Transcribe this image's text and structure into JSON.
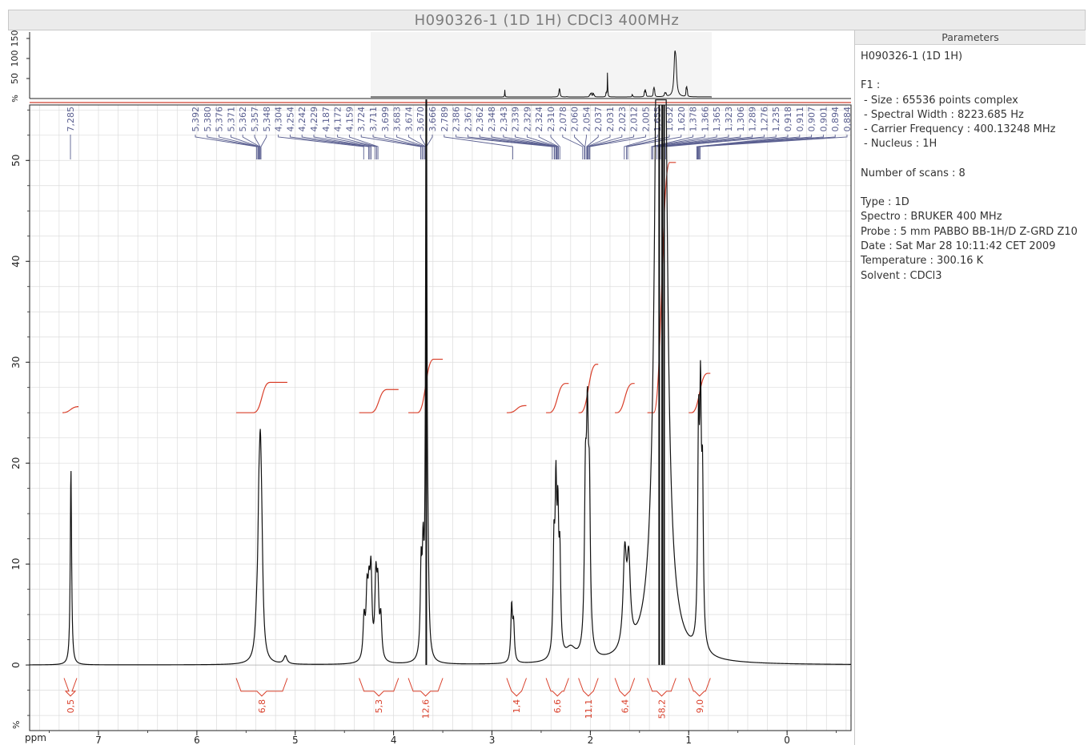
{
  "window": {
    "title": "H090326-1 (1D 1H) CDCl3 400MHz"
  },
  "colors": {
    "spectrum": "#111111",
    "integral": "#d9402b",
    "peak_labels": "#5a5f90",
    "grid": "#dcdcdc",
    "axes": "#222222"
  },
  "parameters": {
    "header": "Parameters",
    "experiment": "H090326-1 (1D 1H)",
    "f1_label": "F1 :",
    "size": "- Size : 65536 points complex",
    "spectral_width": "- Spectral Width : 8223.685 Hz",
    "carrier_frequency": "- Carrier Frequency : 400.13248 MHz",
    "nucleus": "- Nucleus : 1H",
    "scans": "Number of scans : 8",
    "type": "Type : 1D",
    "spectro": "Spectro : BRUKER 400 MHz",
    "probe": "Probe : 5 mm PABBO BB-1H/D Z-GRD Z10",
    "date": "Date : Sat Mar 28 10:11:42 CET 2009",
    "temperature": "Temperature : 300.16 K",
    "solvent": "Solvent : CDCl3"
  },
  "chart_data": {
    "type": "line",
    "title": "H090326-1 (1D 1H) CDCl3 400MHz",
    "xlabel": "ppm",
    "ylabel": "%",
    "x_reversed": true,
    "xlim": [
      7.7,
      -0.65
    ],
    "ylim": [
      -6.5,
      55.5
    ],
    "x_ticks": [
      7,
      6,
      5,
      4,
      3,
      2,
      1,
      0
    ],
    "y_ticks": [
      0,
      10,
      20,
      30,
      40,
      50
    ],
    "overview": {
      "ylabel": "%",
      "y_ticks": [
        "50",
        "100",
        "150"
      ]
    },
    "grid": true,
    "series_peaks": [
      {
        "ppm": 7.28,
        "height": 19.5,
        "width": 0.008
      },
      {
        "ppm": 5.39,
        "height": 3.0,
        "width": 0.02
      },
      {
        "ppm": 5.37,
        "height": 8.0,
        "width": 0.012
      },
      {
        "ppm": 5.355,
        "height": 16.0,
        "width": 0.015
      },
      {
        "ppm": 5.34,
        "height": 7.0,
        "width": 0.015
      },
      {
        "ppm": 5.1,
        "height": 0.8,
        "width": 0.02
      },
      {
        "ppm": 4.3,
        "height": 4.0,
        "width": 0.012
      },
      {
        "ppm": 4.27,
        "height": 6.0,
        "width": 0.012
      },
      {
        "ppm": 4.25,
        "height": 5.5,
        "width": 0.012
      },
      {
        "ppm": 4.23,
        "height": 8.0,
        "width": 0.012
      },
      {
        "ppm": 4.18,
        "height": 7.5,
        "width": 0.012
      },
      {
        "ppm": 4.16,
        "height": 6.5,
        "width": 0.012
      },
      {
        "ppm": 4.13,
        "height": 4.0,
        "width": 0.012
      },
      {
        "ppm": 3.72,
        "height": 8.5,
        "width": 0.01
      },
      {
        "ppm": 3.7,
        "height": 9.0,
        "width": 0.01
      },
      {
        "ppm": 3.668,
        "height": 70.0,
        "width": 0.007
      },
      {
        "ppm": 3.65,
        "height": 6.0,
        "width": 0.01
      },
      {
        "ppm": 2.8,
        "height": 5.5,
        "width": 0.01
      },
      {
        "ppm": 2.78,
        "height": 3.5,
        "width": 0.01
      },
      {
        "ppm": 2.37,
        "height": 10.0,
        "width": 0.01
      },
      {
        "ppm": 2.35,
        "height": 15.0,
        "width": 0.01
      },
      {
        "ppm": 2.33,
        "height": 12.0,
        "width": 0.01
      },
      {
        "ppm": 2.31,
        "height": 9.0,
        "width": 0.01
      },
      {
        "ppm": 2.2,
        "height": 1.2,
        "width": 0.06
      },
      {
        "ppm": 2.05,
        "height": 15.0,
        "width": 0.012
      },
      {
        "ppm": 2.03,
        "height": 19.5,
        "width": 0.012
      },
      {
        "ppm": 2.01,
        "height": 14.0,
        "width": 0.012
      },
      {
        "ppm": 1.65,
        "height": 9.0,
        "width": 0.02
      },
      {
        "ppm": 1.61,
        "height": 8.0,
        "width": 0.02
      },
      {
        "ppm": 1.3,
        "height": 95.0,
        "width": 0.035
      },
      {
        "ppm": 1.26,
        "height": 70.0,
        "width": 0.035
      },
      {
        "ppm": 0.9,
        "height": 20.0,
        "width": 0.01
      },
      {
        "ppm": 0.88,
        "height": 22.0,
        "width": 0.01
      },
      {
        "ppm": 0.86,
        "height": 15.0,
        "width": 0.01
      }
    ],
    "peak_labels": [
      {
        "label": "7,285",
        "ppm": 7.285
      },
      {
        "group": [
          5.392,
          5.38,
          5.376,
          5.371,
          5.362,
          5.357,
          5.348
        ],
        "labels": [
          "5,392",
          "5,380",
          "5,376",
          "5,371",
          "5,362",
          "5,357",
          "5,348"
        ]
      },
      {
        "group": [
          4.304,
          4.254,
          4.242,
          4.229,
          4.187,
          4.172,
          4.159
        ],
        "labels": [
          "4,304",
          "4,254",
          "4,242",
          "4,229",
          "4,187",
          "4,172",
          "4,159"
        ]
      },
      {
        "group": [
          3.724,
          3.711,
          3.699,
          3.683,
          3.674,
          3.67,
          3.666
        ],
        "labels": [
          "3,724",
          "3,711",
          "3,699",
          "3,683",
          "3,674",
          "3,670",
          "3,666"
        ]
      },
      {
        "group": [
          2.789
        ],
        "labels": [
          "2,789"
        ]
      },
      {
        "group": [
          2.386,
          2.367,
          2.362,
          2.348,
          2.343,
          2.339,
          2.329,
          2.324,
          2.31
        ],
        "labels": [
          "2,386",
          "2,367",
          "2,362",
          "2,348",
          "2,343",
          "2,339",
          "2,329",
          "2,324",
          "2,310"
        ]
      },
      {
        "group": [
          2.078,
          2.06,
          2.054,
          2.037,
          2.031,
          2.023,
          2.012,
          2.005
        ],
        "labels": [
          "2,078",
          "2,060",
          "2,054",
          "2,037",
          "2,031",
          "2,023",
          "2,012",
          "2,005"
        ]
      },
      {
        "group": [
          1.655,
          1.632,
          1.62,
          1.378,
          1.366,
          1.365,
          1.323,
          1.306,
          1.289,
          1.276,
          1.235,
          0.918,
          0.911,
          0.907,
          0.901,
          0.894,
          0.884
        ],
        "labels": [
          "1,655",
          "1,632",
          "1,620",
          "1,378",
          "1,366",
          "1,365",
          "1,323",
          "1,306",
          "1,289",
          "1,276",
          "1,235",
          "0,918",
          "0,911",
          "0,907",
          "0,901",
          "0,894",
          "0,884"
        ]
      }
    ],
    "integrals": [
      {
        "from": 7.35,
        "to": 7.22,
        "value": "0,5",
        "rise": 0.6
      },
      {
        "from": 5.6,
        "to": 5.08,
        "value": "6,8",
        "rise": 3.0
      },
      {
        "from": 4.35,
        "to": 3.95,
        "value": "5,3",
        "rise": 2.3
      },
      {
        "from": 3.85,
        "to": 3.5,
        "value": "12,6",
        "rise": 5.3
      },
      {
        "from": 2.85,
        "to": 2.65,
        "value": "1,4",
        "rise": 0.7
      },
      {
        "from": 2.45,
        "to": 2.22,
        "value": "6,6",
        "rise": 2.9
      },
      {
        "from": 2.12,
        "to": 1.92,
        "value": "11,1",
        "rise": 4.8
      },
      {
        "from": 1.75,
        "to": 1.55,
        "value": "6,4",
        "rise": 2.9
      },
      {
        "from": 1.42,
        "to": 1.13,
        "value": "58,2",
        "rise": 24.8
      },
      {
        "from": 1.0,
        "to": 0.78,
        "value": "9,0",
        "rise": 3.9
      }
    ]
  }
}
